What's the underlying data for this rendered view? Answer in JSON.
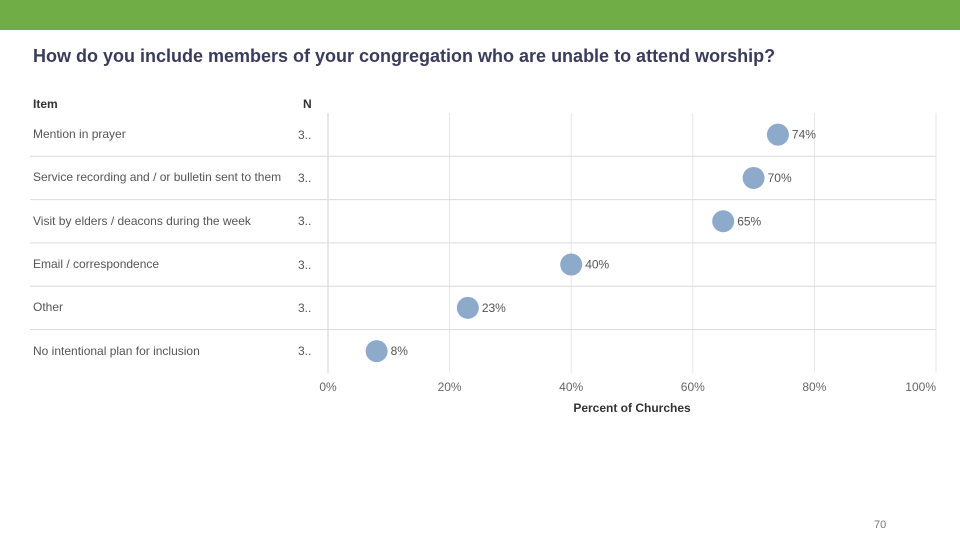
{
  "theme": {
    "top_bar_color": "#70ad47",
    "title_color": "#3b3b5c",
    "point_color": "#8eaacb"
  },
  "title": "How do you include members of your congregation who are unable to attend worship?",
  "page_number": "70",
  "chart_data": {
    "type": "scatter",
    "columns": {
      "item": "Item",
      "n": "N"
    },
    "categories": [
      "Mention in prayer",
      "Service recording and / or bulletin sent to them",
      "Visit by elders / deacons during the week",
      "Email / correspondence",
      "Other",
      "No intentional plan for inclusion"
    ],
    "n_values": [
      "3..",
      "3..",
      "3..",
      "3..",
      "3..",
      "3.."
    ],
    "values": [
      74,
      70,
      65,
      40,
      23,
      8
    ],
    "value_labels": [
      "74%",
      "70%",
      "65%",
      "40%",
      "23%",
      "8%"
    ],
    "xlabel": "Percent of Churches",
    "xlim": [
      0,
      100
    ],
    "xticks": [
      0,
      20,
      40,
      60,
      80,
      100
    ],
    "xtick_labels": [
      "0%",
      "20%",
      "40%",
      "60%",
      "80%",
      "100%"
    ]
  }
}
